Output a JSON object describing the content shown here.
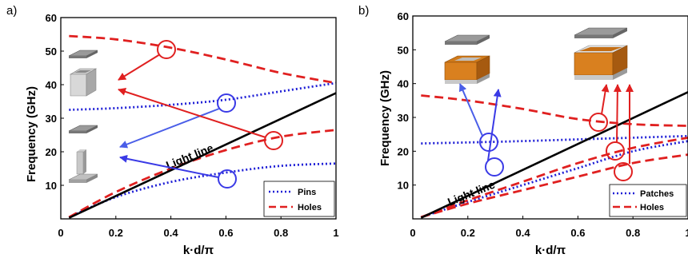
{
  "chart_data": [
    {
      "type": "line",
      "panel_label": "a)",
      "xlabel": "k·d/π",
      "ylabel": "Frequency (GHz)",
      "xlim": [
        0,
        1
      ],
      "ylim": [
        0,
        60
      ],
      "xticks": [
        "0",
        "0.2",
        "0.4",
        "0.6",
        "0.8",
        "1"
      ],
      "yticks": [
        "10",
        "20",
        "30",
        "40",
        "50",
        "60"
      ],
      "grid": false,
      "legend_position": "bottom-right",
      "annotation": "Light line",
      "series": [
        {
          "name": "Pins",
          "style": "dotted",
          "color": "#1f1fd6",
          "x": [
            0.03,
            0.2,
            0.4,
            0.6,
            0.8,
            1.0
          ],
          "y": [
            0.5,
            6.5,
            11.0,
            13.8,
            15.8,
            16.5
          ]
        },
        {
          "name": "",
          "style": "dotted",
          "color": "#1f1fd6",
          "x": [
            0.03,
            0.2,
            0.4,
            0.6,
            0.8,
            1.0
          ],
          "y": [
            32.5,
            33.0,
            34.0,
            35.5,
            38.0,
            40.5
          ]
        },
        {
          "name": "Holes",
          "style": "dashed",
          "color": "#e02020",
          "x": [
            0.03,
            0.2,
            0.4,
            0.6,
            0.8,
            1.0
          ],
          "y": [
            0.5,
            8.0,
            15.0,
            20.5,
            24.5,
            26.5
          ]
        },
        {
          "name": "",
          "style": "dashed",
          "color": "#e02020",
          "x": [
            0.03,
            0.2,
            0.4,
            0.6,
            0.8,
            1.0
          ],
          "y": [
            54.5,
            53.5,
            51.0,
            47.5,
            43.5,
            40.5
          ]
        },
        {
          "name": "",
          "style": "solid",
          "color": "#000000",
          "x": [
            0.03,
            1.0
          ],
          "y": [
            0.3,
            37.5
          ]
        }
      ]
    },
    {
      "type": "line",
      "panel_label": "b)",
      "xlabel": "k·d/π",
      "ylabel": "Frequency (GHz)",
      "xlim": [
        0,
        1
      ],
      "ylim": [
        0,
        60
      ],
      "xticks": [
        "0",
        "0.2",
        "0.4",
        "0.6",
        "0.8",
        "1"
      ],
      "yticks": [
        "10",
        "20",
        "30",
        "40",
        "50",
        "60"
      ],
      "grid": false,
      "legend_position": "bottom-right",
      "annotation": "Light line",
      "series": [
        {
          "name": "Patches",
          "style": "dotted",
          "color": "#1f1fd6",
          "x": [
            0.03,
            0.2,
            0.4,
            0.6,
            0.8,
            1.0
          ],
          "y": [
            0.5,
            5.0,
            10.0,
            15.0,
            20.0,
            23.0
          ]
        },
        {
          "name": "",
          "style": "dotted",
          "color": "#1f1fd6",
          "x": [
            0.03,
            0.2,
            0.4,
            0.6,
            0.8,
            1.0
          ],
          "y": [
            22.3,
            22.6,
            23.0,
            23.5,
            24.0,
            24.5
          ]
        },
        {
          "name": "Holes",
          "style": "dashed",
          "color": "#e02020",
          "x": [
            0.03,
            0.2,
            0.4,
            0.6,
            0.8,
            1.0
          ],
          "y": [
            0.5,
            4.5,
            8.5,
            12.5,
            16.5,
            19.0
          ]
        },
        {
          "name": "",
          "style": "dashed",
          "color": "#e02020",
          "x": [
            0.03,
            0.2,
            0.4,
            0.6,
            0.8,
            1.0
          ],
          "y": [
            0.5,
            5.5,
            11.0,
            16.5,
            21.0,
            24.0
          ]
        },
        {
          "name": "",
          "style": "dashed",
          "color": "#e02020",
          "x": [
            0.03,
            0.2,
            0.4,
            0.6,
            0.8,
            1.0
          ],
          "y": [
            36.5,
            35.0,
            32.5,
            29.5,
            28.0,
            27.5
          ]
        },
        {
          "name": "",
          "style": "solid",
          "color": "#000000",
          "x": [
            0.03,
            1.0
          ],
          "y": [
            0.3,
            37.5
          ]
        }
      ]
    }
  ]
}
